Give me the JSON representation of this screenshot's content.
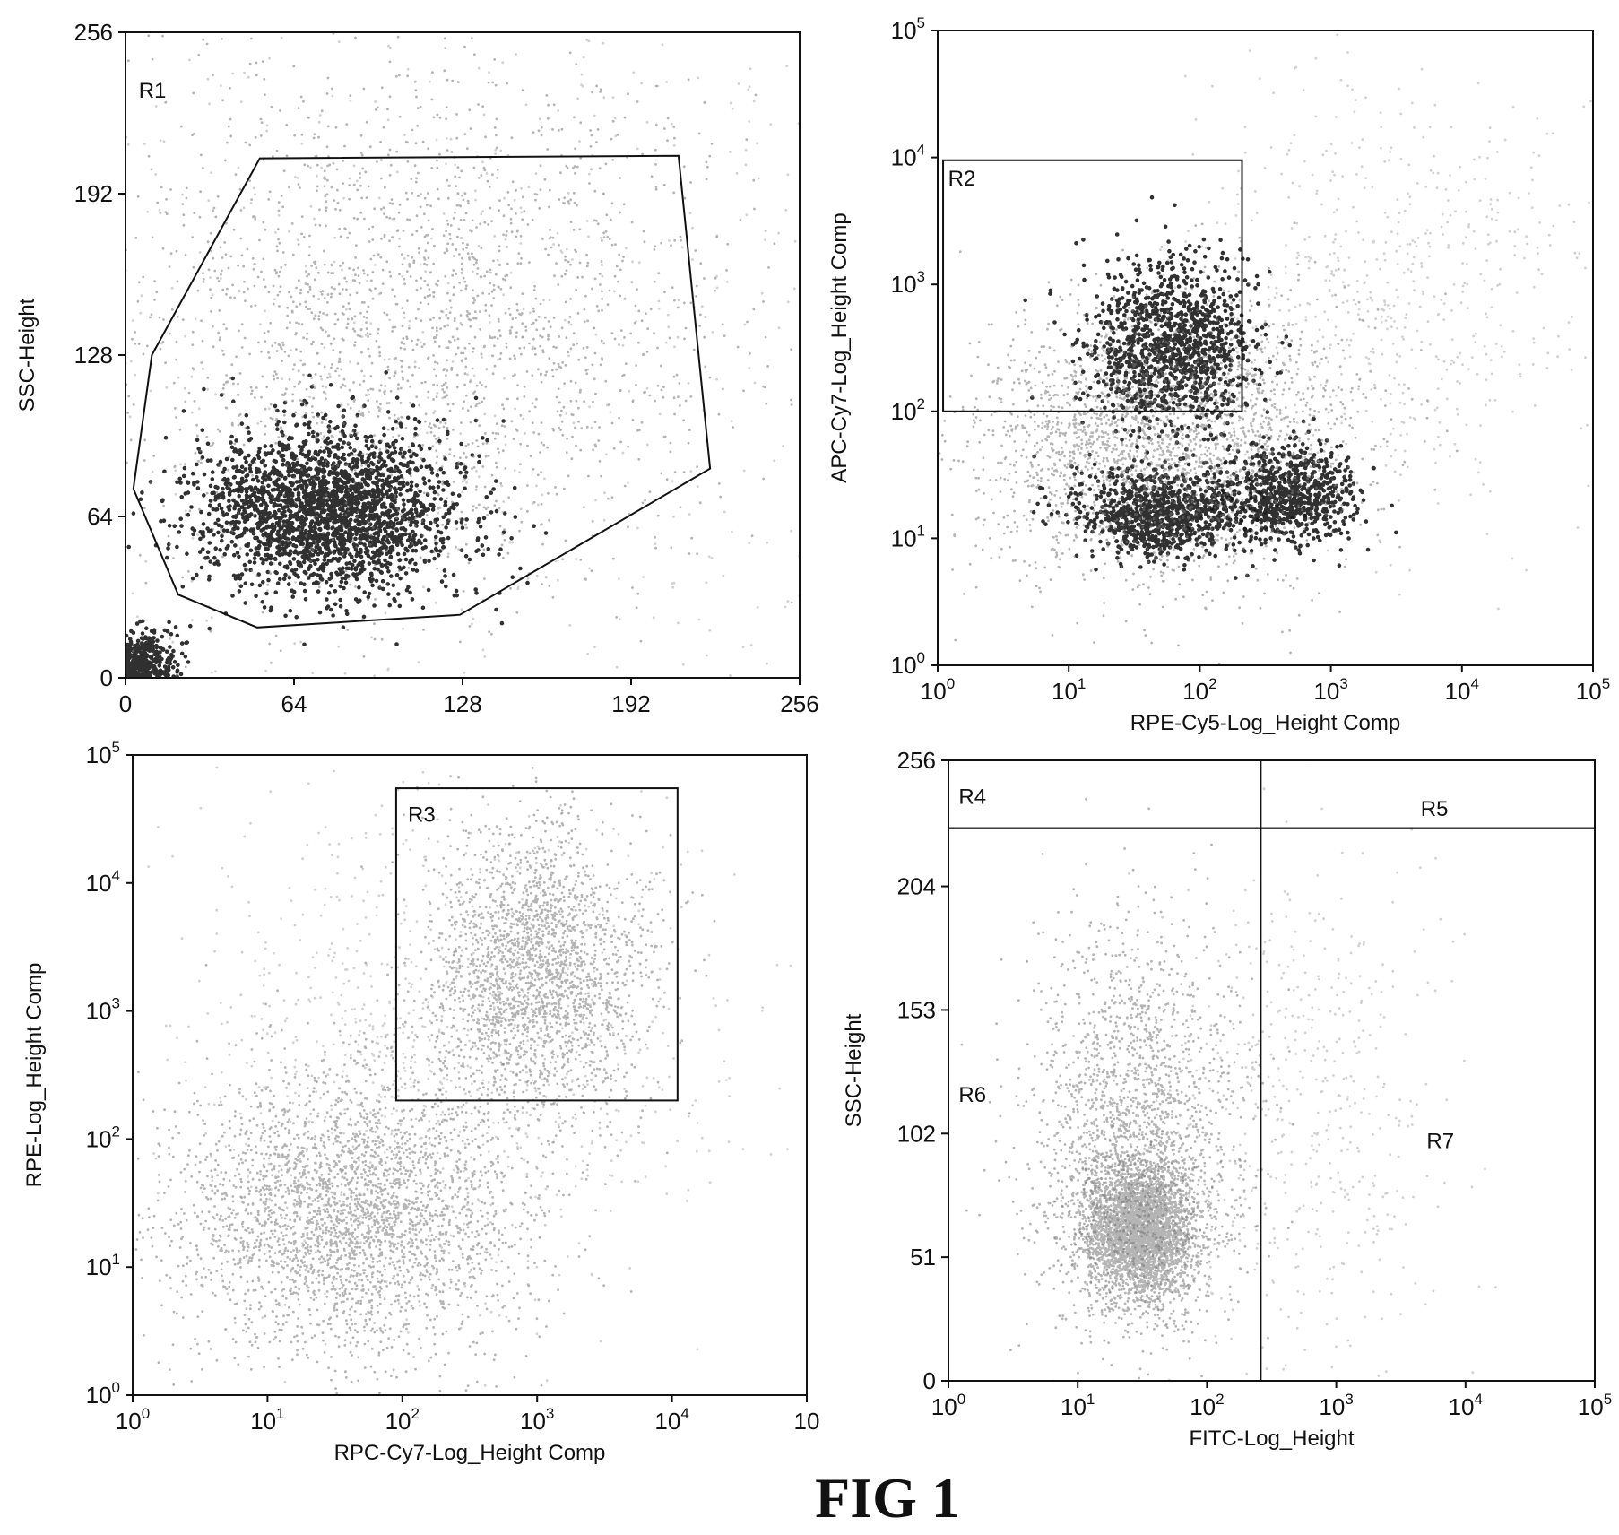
{
  "caption": "FIG 1",
  "colors": {
    "ink": "#111111",
    "dense": "#1a1a1a",
    "mid": "#777777",
    "sparse": "#9a9a9a"
  },
  "chart_data": [
    {
      "type": "scatter",
      "panel": "top-left",
      "xlabel": "",
      "ylabel": "SSC-Height",
      "x_scale": "linear",
      "y_scale": "linear",
      "xlim": [
        0,
        256
      ],
      "ylim": [
        0,
        256
      ],
      "x_ticks": [
        {
          "value": 0,
          "label": "0"
        },
        {
          "value": 64,
          "label": "64"
        },
        {
          "value": 128,
          "label": "128"
        },
        {
          "value": 192,
          "label": "192"
        },
        {
          "value": 256,
          "label": "256"
        }
      ],
      "y_ticks": [
        {
          "value": 0,
          "label": "0"
        },
        {
          "value": 64,
          "label": "64"
        },
        {
          "value": 128,
          "label": "128"
        },
        {
          "value": 192,
          "label": "192"
        },
        {
          "value": 256,
          "label": "256"
        }
      ],
      "gates": [
        {
          "label": "R1",
          "shape": "polygon",
          "label_at": [
            5,
            230
          ],
          "points": [
            [
              51,
              206
            ],
            [
              210,
              207
            ],
            [
              222,
              83
            ],
            [
              127,
              25
            ],
            [
              50,
              20
            ],
            [
              20,
              33
            ],
            [
              3,
              75
            ],
            [
              10,
              128
            ]
          ]
        }
      ],
      "populations": [
        {
          "center": [
            3,
            6
          ],
          "spread": [
            8,
            6
          ],
          "weight": 0.1,
          "density": "dense"
        },
        {
          "center": [
            76,
            66
          ],
          "spread": [
            24,
            16
          ],
          "weight": 0.4,
          "density": "dense"
        },
        {
          "center": [
            110,
            140
          ],
          "spread": [
            60,
            52
          ],
          "weight": 0.36,
          "density": "mid"
        },
        {
          "center": [
            128,
            128
          ],
          "spread": [
            110,
            110
          ],
          "weight": 0.14,
          "density": "sparse"
        }
      ]
    },
    {
      "type": "scatter",
      "panel": "top-right",
      "xlabel": "RPE-Cy5-Log_Height Comp",
      "ylabel": "APC-Cy7-Log_Height Comp",
      "x_scale": "log",
      "y_scale": "log",
      "xlim": [
        1,
        100000
      ],
      "ylim": [
        1,
        100000
      ],
      "x_ticks": [
        {
          "value": 1,
          "base": "10",
          "exp": "0"
        },
        {
          "value": 10,
          "base": "10",
          "exp": "1"
        },
        {
          "value": 100,
          "base": "10",
          "exp": "2"
        },
        {
          "value": 1000,
          "base": "10",
          "exp": "3"
        },
        {
          "value": 10000,
          "base": "10",
          "exp": "4"
        },
        {
          "value": 100000,
          "base": "10",
          "exp": "5"
        }
      ],
      "y_ticks": [
        {
          "value": 1,
          "base": "10",
          "exp": "0"
        },
        {
          "value": 10,
          "base": "10",
          "exp": "1"
        },
        {
          "value": 100,
          "base": "10",
          "exp": "2"
        },
        {
          "value": 1000,
          "base": "10",
          "exp": "3"
        },
        {
          "value": 10000,
          "base": "10",
          "exp": "4"
        },
        {
          "value": 100000,
          "base": "10",
          "exp": "5"
        }
      ],
      "gates": [
        {
          "label": "R2",
          "shape": "rect",
          "label_at": [
            1.2,
            6000
          ],
          "x_range": [
            1.1,
            210
          ],
          "y_range": [
            100,
            9500
          ]
        }
      ],
      "populations": [
        {
          "center": [
            60,
            320
          ],
          "spread": [
            0.32,
            0.32
          ],
          "weight": 0.2,
          "density": "dense"
        },
        {
          "center": [
            50,
            16
          ],
          "spread": [
            0.33,
            0.18
          ],
          "weight": 0.16,
          "density": "dense"
        },
        {
          "center": [
            500,
            22
          ],
          "spread": [
            0.25,
            0.2
          ],
          "weight": 0.12,
          "density": "dense"
        },
        {
          "center": [
            50,
            60
          ],
          "spread": [
            0.7,
            0.55
          ],
          "weight": 0.42,
          "density": "mid"
        },
        {
          "center": [
            3000,
            800
          ],
          "spread": [
            0.8,
            0.8
          ],
          "weight": 0.1,
          "density": "sparse"
        }
      ]
    },
    {
      "type": "scatter",
      "panel": "bottom-left",
      "xlabel": "RPC-Cy7-Log_Height Comp",
      "ylabel": "RPE-Log_Height Comp",
      "x_scale": "log",
      "y_scale": "log",
      "xlim": [
        1,
        100000
      ],
      "ylim": [
        1,
        100000
      ],
      "x_ticks": [
        {
          "value": 1,
          "base": "10",
          "exp": "0"
        },
        {
          "value": 10,
          "base": "10",
          "exp": "1"
        },
        {
          "value": 100,
          "base": "10",
          "exp": "2"
        },
        {
          "value": 1000,
          "base": "10",
          "exp": "3"
        },
        {
          "value": 10000,
          "base": "10",
          "exp": "4"
        },
        {
          "value": 100000,
          "base": "10",
          "exp": ""
        }
      ],
      "y_ticks": [
        {
          "value": 1,
          "base": "10",
          "exp": "0"
        },
        {
          "value": 10,
          "base": "10",
          "exp": "1"
        },
        {
          "value": 100,
          "base": "10",
          "exp": "2"
        },
        {
          "value": 1000,
          "base": "10",
          "exp": "3"
        },
        {
          "value": 10000,
          "base": "10",
          "exp": "4"
        },
        {
          "value": 100000,
          "base": "10",
          "exp": "5"
        }
      ],
      "gates": [
        {
          "label": "R3",
          "shape": "rect",
          "label_at": [
            110,
            30000
          ],
          "x_range": [
            90,
            11000
          ],
          "y_range": [
            200,
            55000
          ]
        }
      ],
      "populations": [
        {
          "center": [
            1000,
            2000
          ],
          "spread": [
            0.4,
            0.55
          ],
          "weight": 0.36,
          "density": "mid"
        },
        {
          "center": [
            40,
            25
          ],
          "spread": [
            0.65,
            0.55
          ],
          "weight": 0.48,
          "density": "mid"
        },
        {
          "center": [
            200,
            500
          ],
          "spread": [
            1.0,
            1.0
          ],
          "weight": 0.16,
          "density": "sparse"
        }
      ]
    },
    {
      "type": "scatter",
      "panel": "bottom-right",
      "xlabel": "FITC-Log_Height",
      "ylabel": "SSC-Height",
      "x_scale": "log",
      "y_scale": "linear",
      "xlim": [
        1,
        100000
      ],
      "ylim": [
        0,
        256
      ],
      "x_ticks": [
        {
          "value": 1,
          "base": "10",
          "exp": "0"
        },
        {
          "value": 10,
          "base": "10",
          "exp": "1"
        },
        {
          "value": 100,
          "base": "10",
          "exp": "2"
        },
        {
          "value": 1000,
          "base": "10",
          "exp": "3"
        },
        {
          "value": 10000,
          "base": "10",
          "exp": "4"
        },
        {
          "value": 100000,
          "base": "10",
          "exp": "5"
        }
      ],
      "y_ticks": [
        {
          "value": 0,
          "label": "0"
        },
        {
          "value": 51,
          "label": "51"
        },
        {
          "value": 102,
          "label": "102"
        },
        {
          "value": 153,
          "label": "153"
        },
        {
          "value": 204,
          "label": "204"
        },
        {
          "value": 256,
          "label": "256"
        }
      ],
      "gates": [
        {
          "label": "R4",
          "shape": "rect",
          "label_at": [
            1.2,
            238
          ],
          "x_range": [
            1,
            260
          ],
          "y_range": [
            228,
            256
          ]
        },
        {
          "label": "R5",
          "shape": "rect",
          "label_at": [
            4500,
            233
          ],
          "x_range": [
            260,
            100000
          ],
          "y_range": [
            228,
            256
          ]
        },
        {
          "label": "R6",
          "shape": "rect",
          "label_at": [
            1.2,
            115
          ],
          "x_range": [
            1,
            260
          ],
          "y_range": [
            0,
            228
          ]
        },
        {
          "label": "R7",
          "shape": "rect",
          "label_at": [
            5000,
            96
          ],
          "x_range": [
            260,
            100000
          ],
          "y_range": [
            0,
            228
          ]
        }
      ],
      "populations": [
        {
          "center": [
            30,
            62
          ],
          "spread": [
            0.22,
            14
          ],
          "weight": 0.6,
          "density": "mid"
        },
        {
          "center": [
            28,
            100
          ],
          "spread": [
            0.4,
            42
          ],
          "weight": 0.32,
          "density": "mid"
        },
        {
          "center": [
            600,
            110
          ],
          "spread": [
            0.5,
            50
          ],
          "weight": 0.08,
          "density": "sparse"
        }
      ]
    }
  ]
}
